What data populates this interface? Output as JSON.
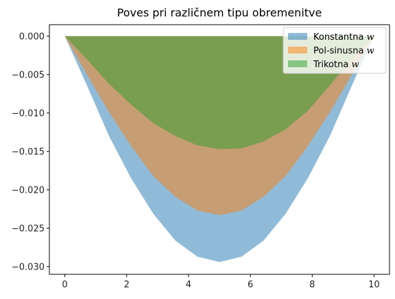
{
  "chart_data": {
    "type": "area",
    "title": "Poves pri različnem tipu obremenitve",
    "xlabel": "",
    "ylabel": "",
    "xlim": [
      -0.5,
      10.5
    ],
    "ylim": [
      -0.031,
      0.0015
    ],
    "x_ticks": [
      0,
      2,
      4,
      6,
      8,
      10
    ],
    "y_ticks": [
      0.0,
      -0.005,
      -0.01,
      -0.015,
      -0.02,
      -0.025,
      -0.03
    ],
    "y_tick_labels": [
      "0.000",
      "−0.005",
      "−0.010",
      "−0.015",
      "−0.020",
      "−0.025",
      "−0.030"
    ],
    "grid": false,
    "legend_position": "upper right",
    "x": [
      0,
      0.714,
      1.429,
      2.143,
      2.857,
      3.571,
      4.286,
      5.0,
      5.714,
      6.429,
      7.143,
      7.857,
      8.571,
      9.286,
      10.0
    ],
    "series": [
      {
        "name": "Konstantna",
        "name_italic": "w",
        "color": "#1f77b4",
        "values": [
          0,
          -0.0064,
          -0.013,
          -0.0185,
          -0.0231,
          -0.0266,
          -0.0287,
          -0.0294,
          -0.0287,
          -0.0266,
          -0.0231,
          -0.0185,
          -0.013,
          -0.0064,
          0
        ]
      },
      {
        "name": "Pol-sinusna",
        "name_italic": "w",
        "color": "#ff7f0e",
        "values": [
          0,
          -0.005,
          -0.0099,
          -0.0143,
          -0.0182,
          -0.0209,
          -0.0227,
          -0.0233,
          -0.0227,
          -0.0209,
          -0.0182,
          -0.0143,
          -0.0099,
          -0.005,
          0
        ]
      },
      {
        "name": "Trikotna",
        "name_italic": "w",
        "color": "#2ca02c",
        "values": [
          0,
          -0.003,
          -0.0062,
          -0.0089,
          -0.0113,
          -0.013,
          -0.0142,
          -0.0147,
          -0.0146,
          -0.0137,
          -0.0121,
          -0.0097,
          -0.0064,
          -0.003,
          0
        ]
      }
    ]
  }
}
